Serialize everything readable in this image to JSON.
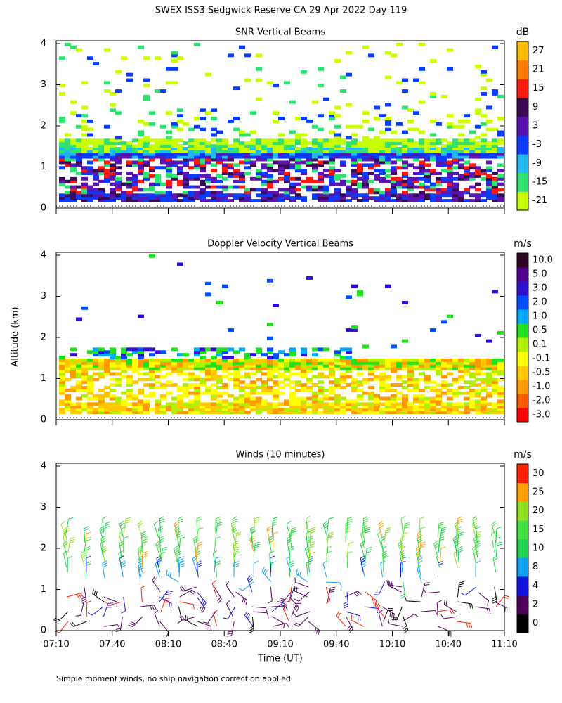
{
  "title": "SWEX ISS3 Sedgwick Reserve CA  29 Apr 2022 Day 119",
  "y_label": "Altitude (km)",
  "x_label": "Time (UT)",
  "footnote": "Simple moment winds, no ship navigation correction applied",
  "chart_data": [
    {
      "type": "heatmap",
      "title": "SNR Vertical Beams",
      "ylim": [
        0,
        4
      ],
      "yticks": [
        0,
        1,
        2,
        3,
        4
      ],
      "xlim": [
        430,
        670
      ],
      "xticks": [
        {
          "value": 430,
          "label": "07:10"
        },
        {
          "value": 460,
          "label": "07:40"
        },
        {
          "value": 490,
          "label": "08:10"
        },
        {
          "value": 520,
          "label": "08:40"
        },
        {
          "value": 550,
          "label": "09:10"
        },
        {
          "value": 580,
          "label": "09:40"
        },
        {
          "value": 610,
          "label": "10:10"
        },
        {
          "value": 640,
          "label": "10:40"
        },
        {
          "value": 670,
          "label": "11:10"
        }
      ],
      "colorbar": {
        "unit": "dB",
        "labels": [
          -21,
          -15,
          -9,
          -3,
          3,
          9,
          15,
          21,
          27
        ],
        "colors": [
          "#c8ff00",
          "#30e070",
          "#20b8f0",
          "#0a3cff",
          "#5a14b0",
          "#3a0a52",
          "#ff1a10",
          "#ff7a00",
          "#ffbc00"
        ]
      }
    },
    {
      "type": "heatmap",
      "title": "Doppler Velocity Vertical Beams",
      "ylim": [
        0,
        4
      ],
      "yticks": [
        0,
        1,
        2,
        3,
        4
      ],
      "xlim": [
        430,
        670
      ],
      "xticks": [
        {
          "value": 430,
          "label": "07:10"
        },
        {
          "value": 460,
          "label": "07:40"
        },
        {
          "value": 490,
          "label": "08:10"
        },
        {
          "value": 520,
          "label": "08:40"
        },
        {
          "value": 550,
          "label": "09:10"
        },
        {
          "value": 580,
          "label": "09:40"
        },
        {
          "value": 610,
          "label": "10:10"
        },
        {
          "value": 640,
          "label": "10:40"
        },
        {
          "value": 670,
          "label": "11:10"
        }
      ],
      "colorbar": {
        "unit": "m/s",
        "labels": [
          {
            "value": -3,
            "label": "-3.0"
          },
          {
            "value": -2,
            "label": "-2.0"
          },
          {
            "value": -1,
            "label": "-1.0"
          },
          -0.5,
          -0.1,
          0.1,
          0.5,
          {
            "value": 1,
            "label": "1.0"
          },
          {
            "value": 2,
            "label": "2.0"
          },
          {
            "value": 3,
            "label": "3.0"
          },
          {
            "value": 5,
            "label": "5.0"
          },
          {
            "value": 10,
            "label": "10.0"
          }
        ],
        "colors": [
          "#ff0000",
          "#ff5a00",
          "#ff9a00",
          "#ffc800",
          "#ffff00",
          "#b0f000",
          "#20e020",
          "#00a8ff",
          "#0050ff",
          "#3010d0",
          "#500090",
          "#300020"
        ]
      }
    },
    {
      "type": "barbs",
      "title": "Winds (10 minutes)",
      "ylim": [
        0,
        4
      ],
      "yticks": [
        0,
        1,
        2,
        3,
        4
      ],
      "xlim": [
        430,
        670
      ],
      "xticks": [
        {
          "value": 430,
          "label": "07:10"
        },
        {
          "value": 460,
          "label": "07:40"
        },
        {
          "value": 490,
          "label": "08:10"
        },
        {
          "value": 520,
          "label": "08:40"
        },
        {
          "value": 550,
          "label": "09:10"
        },
        {
          "value": 580,
          "label": "09:40"
        },
        {
          "value": 610,
          "label": "10:10"
        },
        {
          "value": 640,
          "label": "10:40"
        },
        {
          "value": 670,
          "label": "11:10"
        }
      ],
      "colorbar": {
        "unit": "m/s",
        "labels": [
          0,
          2,
          4,
          8,
          10,
          15,
          20,
          25,
          30
        ],
        "colors": [
          "#000000",
          "#50005a",
          "#1010e0",
          "#10a0f0",
          "#20d050",
          "#40e040",
          "#90e020",
          "#ffa000",
          "#ff2000"
        ]
      }
    }
  ]
}
